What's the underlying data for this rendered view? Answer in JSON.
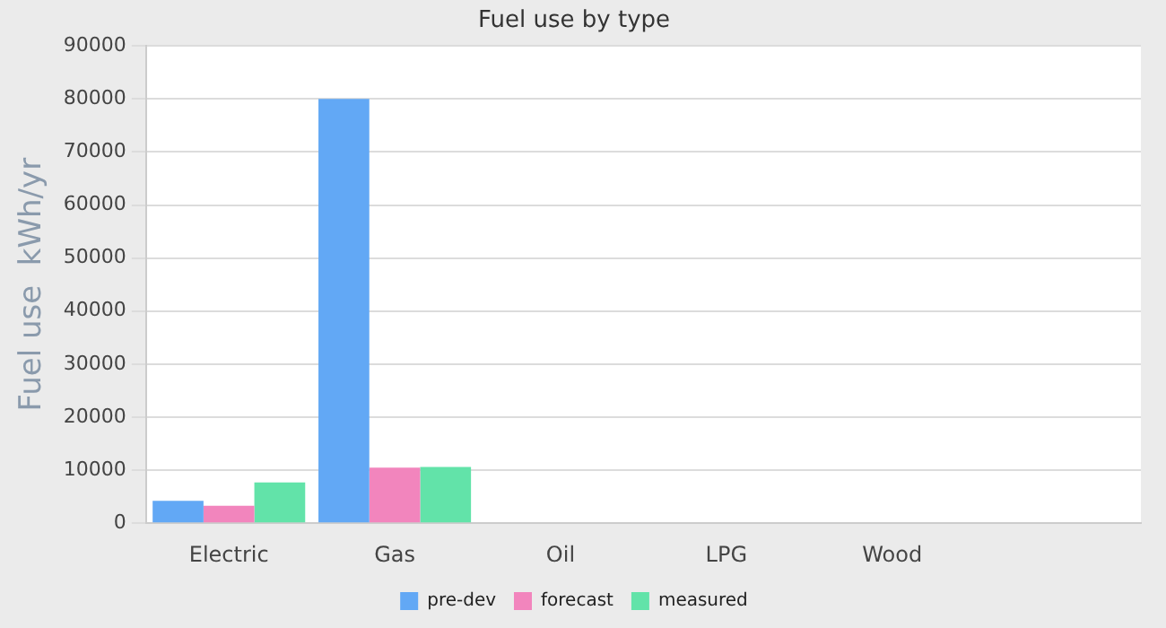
{
  "chart_data": {
    "type": "bar",
    "title": "Fuel use by type",
    "ylabel": "Fuel use  kWh/yr",
    "categories": [
      "Electric",
      "Gas",
      "Oil",
      "LPG",
      "Wood",
      null
    ],
    "series": [
      {
        "name": "pre-dev",
        "color": "#62a8f5",
        "values": [
          4200,
          80000,
          0,
          0,
          0,
          null
        ]
      },
      {
        "name": "forecast",
        "color": "#f285bd",
        "values": [
          3300,
          10500,
          0,
          0,
          0,
          null
        ]
      },
      {
        "name": "measured",
        "color": "#62e3a9",
        "values": [
          7700,
          10600,
          0,
          0,
          0,
          null
        ]
      }
    ],
    "ylim": [
      0,
      90000
    ],
    "yticks": [
      0,
      10000,
      20000,
      30000,
      40000,
      50000,
      60000,
      70000,
      80000,
      90000
    ],
    "grid": "y",
    "legend": "bottom"
  }
}
